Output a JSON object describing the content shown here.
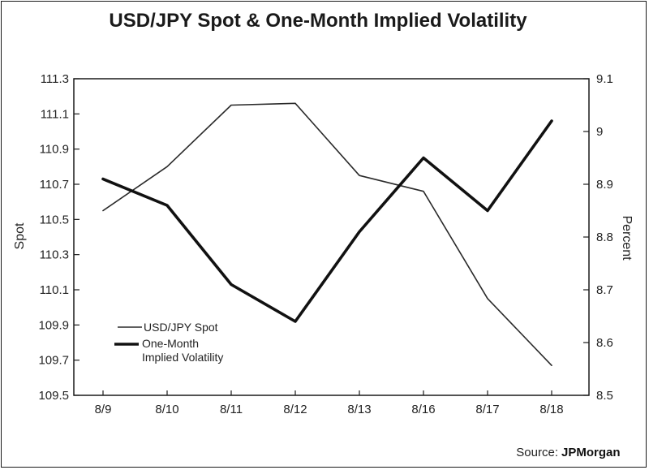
{
  "chart_data": {
    "type": "line",
    "title": "USD/JPY Spot & One-Month Implied Volatility",
    "categories": [
      "8/9",
      "8/10",
      "8/11",
      "8/12",
      "8/13",
      "8/16",
      "8/17",
      "8/18"
    ],
    "y_left": {
      "label": "Spot",
      "range": [
        109.5,
        111.3
      ],
      "ticks": [
        "111.3",
        "111.1",
        "110.9",
        "110.7",
        "110.5",
        "110.3",
        "110.1",
        "109.9",
        "109.7",
        "109.5"
      ]
    },
    "y_right": {
      "label": "Percent",
      "range": [
        8.5,
        9.1
      ],
      "ticks": [
        "9.1",
        "9",
        "8.9",
        "8.8",
        "8.7",
        "8.6",
        "8.5"
      ]
    },
    "series": [
      {
        "name": "USD/JPY Spot",
        "axis": "left",
        "color": "#2a2a2a",
        "style": "thin",
        "values": [
          110.55,
          110.8,
          111.15,
          111.16,
          110.75,
          110.66,
          110.05,
          109.67
        ]
      },
      {
        "name": "One-Month Implied Volatility",
        "axis": "right",
        "color": "#111111",
        "style": "thick",
        "values": [
          8.91,
          8.86,
          8.71,
          8.64,
          8.81,
          8.95,
          8.85,
          9.02
        ]
      }
    ],
    "legend": {
      "placement": "lower-left",
      "entries": [
        "USD/JPY Spot",
        "One-Month",
        "Implied Volatility"
      ]
    },
    "grid": false
  },
  "source": {
    "prefix": "Source:",
    "brand": "JPMorgan"
  }
}
